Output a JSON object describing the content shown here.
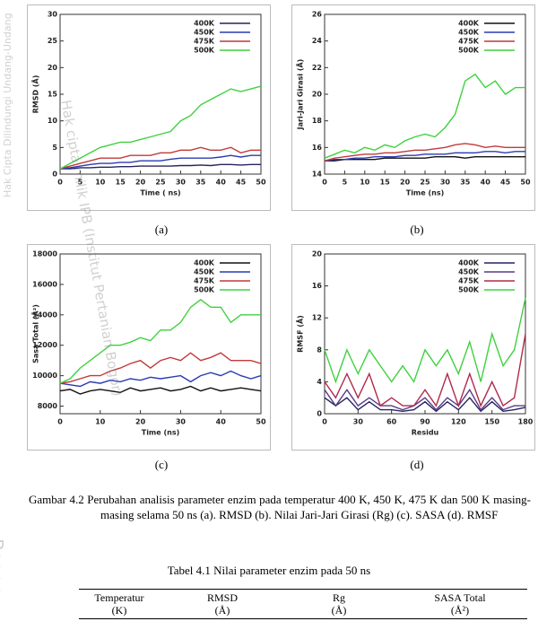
{
  "chart_data": [
    {
      "type": "line",
      "x_label": "Time ( ns)",
      "y_label": "RMSD (Å)",
      "x": [
        0,
        2.5,
        5,
        7.5,
        10,
        12.5,
        15,
        17.5,
        20,
        22.5,
        25,
        27.5,
        30,
        32.5,
        35,
        37.5,
        40,
        42.5,
        45,
        47.5,
        50
      ],
      "xlim": [
        0,
        50
      ],
      "xticks": [
        0,
        5,
        10,
        15,
        20,
        25,
        30,
        35,
        40,
        45,
        50
      ],
      "ylim": [
        0,
        30
      ],
      "yticks": [
        0,
        5,
        10,
        15,
        20,
        25,
        30
      ],
      "series": [
        {
          "name": "400K",
          "color": "#26245e",
          "values": [
            1,
            1,
            1.2,
            1.2,
            1.3,
            1.3,
            1.4,
            1.4,
            1.5,
            1.5,
            1.5,
            1.5,
            1.6,
            1.6,
            1.7,
            1.6,
            1.8,
            1.8,
            1.7,
            1.8,
            1.8
          ]
        },
        {
          "name": "450K",
          "color": "#2b3bb0",
          "values": [
            1,
            1.2,
            1.5,
            1.8,
            2,
            2,
            2.2,
            2.2,
            2.5,
            2.5,
            2.5,
            2.8,
            3,
            3,
            3,
            3,
            3.2,
            3.5,
            3.2,
            3.5,
            3.5
          ]
        },
        {
          "name": "475K",
          "color": "#c23a3a",
          "values": [
            1,
            1.5,
            2,
            2.5,
            3,
            3,
            3,
            3.5,
            3.5,
            3.5,
            4,
            4,
            4.5,
            4.5,
            5,
            4.5,
            4.5,
            5,
            4,
            4.5,
            4.5
          ]
        },
        {
          "name": "500K",
          "color": "#3fd13f",
          "values": [
            1,
            2,
            3,
            4,
            5,
            5.5,
            6,
            6,
            6.5,
            7,
            7.5,
            8,
            10,
            11,
            13,
            14,
            15,
            16,
            15.5,
            16,
            16.5
          ]
        }
      ]
    },
    {
      "type": "line",
      "x_label": "Time (ns)",
      "y_label": "Jari-Jari Girasi (Å)",
      "x": [
        0,
        2.5,
        5,
        7.5,
        10,
        12.5,
        15,
        17.5,
        20,
        22.5,
        25,
        27.5,
        30,
        32.5,
        35,
        37.5,
        40,
        42.5,
        45,
        47.5,
        50
      ],
      "xlim": [
        0,
        50
      ],
      "xticks": [
        0,
        5,
        10,
        15,
        20,
        25,
        30,
        35,
        40,
        45,
        50
      ],
      "ylim": [
        14,
        26
      ],
      "yticks": [
        14,
        16,
        18,
        20,
        22,
        24,
        26
      ],
      "series": [
        {
          "name": "400K",
          "color": "#111111",
          "values": [
            15,
            15,
            15.1,
            15.1,
            15.1,
            15.1,
            15.2,
            15.2,
            15.2,
            15.2,
            15.2,
            15.3,
            15.3,
            15.3,
            15.2,
            15.3,
            15.3,
            15.3,
            15.3,
            15.3,
            15.3
          ]
        },
        {
          "name": "450K",
          "color": "#2b3bb0",
          "values": [
            15,
            15.1,
            15.1,
            15.2,
            15.2,
            15.3,
            15.3,
            15.3,
            15.4,
            15.4,
            15.5,
            15.5,
            15.5,
            15.6,
            15.6,
            15.6,
            15.7,
            15.7,
            15.6,
            15.7,
            15.7
          ]
        },
        {
          "name": "475K",
          "color": "#c23a3a",
          "values": [
            15,
            15.2,
            15.3,
            15.4,
            15.5,
            15.5,
            15.6,
            15.6,
            15.7,
            15.8,
            15.8,
            15.9,
            16,
            16.2,
            16.3,
            16.2,
            16,
            16.1,
            16,
            16,
            16
          ]
        },
        {
          "name": "500K",
          "color": "#3fd13f",
          "values": [
            15.2,
            15.5,
            15.8,
            15.6,
            16,
            15.8,
            16.2,
            16,
            16.5,
            16.8,
            17,
            16.8,
            17.5,
            18.5,
            21,
            21.5,
            20.5,
            21,
            20,
            20.5,
            20.5
          ]
        }
      ]
    },
    {
      "type": "line",
      "x_label": "Time (ns)",
      "y_label": "Sasa Total (Å²)",
      "x": [
        0,
        2.5,
        5,
        7.5,
        10,
        12.5,
        15,
        17.5,
        20,
        22.5,
        25,
        27.5,
        30,
        32.5,
        35,
        37.5,
        40,
        42.5,
        45,
        47.5,
        50
      ],
      "xlim": [
        0,
        50
      ],
      "xticks": [
        0,
        10,
        20,
        30,
        40,
        50
      ],
      "ylim": [
        7500,
        18000
      ],
      "yticks": [
        8000,
        10000,
        12000,
        14000,
        16000,
        18000
      ],
      "series": [
        {
          "name": "400K",
          "color": "#111111",
          "values": [
            9000,
            9100,
            8800,
            9000,
            9100,
            9000,
            8900,
            9200,
            9000,
            9100,
            9200,
            9000,
            9100,
            9300,
            9000,
            9200,
            9000,
            9100,
            9200,
            9100,
            9000
          ]
        },
        {
          "name": "450K",
          "color": "#2b3bb0",
          "values": [
            9500,
            9400,
            9300,
            9600,
            9500,
            9700,
            9600,
            9800,
            9700,
            9900,
            9800,
            9900,
            10000,
            9600,
            10000,
            10200,
            10000,
            10300,
            10000,
            9800,
            10000
          ]
        },
        {
          "name": "475K",
          "color": "#c23a3a",
          "values": [
            9500,
            9600,
            9800,
            10000,
            10000,
            10300,
            10500,
            10800,
            11000,
            10500,
            11000,
            11200,
            11000,
            11500,
            11000,
            11200,
            11500,
            11000,
            11000,
            11000,
            10800
          ]
        },
        {
          "name": "500K",
          "color": "#3fd13f",
          "values": [
            9500,
            9800,
            10500,
            11000,
            11500,
            12000,
            12000,
            12200,
            12500,
            12300,
            13000,
            13000,
            13500,
            14500,
            15000,
            14500,
            14500,
            13500,
            14000,
            14000,
            14000
          ]
        }
      ]
    },
    {
      "type": "line",
      "x_label": "Residu",
      "y_label": "RMSF (Å)",
      "x": [
        0,
        10,
        20,
        30,
        40,
        50,
        60,
        70,
        80,
        90,
        100,
        110,
        120,
        130,
        140,
        150,
        160,
        170,
        180
      ],
      "xlim": [
        0,
        180
      ],
      "xticks": [
        0,
        30,
        60,
        90,
        120,
        150,
        180
      ],
      "ylim": [
        0,
        20
      ],
      "yticks": [
        0,
        4,
        8,
        12,
        16,
        20
      ],
      "series": [
        {
          "name": "400K",
          "color": "#26245e",
          "values": [
            2,
            1,
            2,
            0.5,
            1.5,
            0.5,
            0.5,
            0.3,
            0.5,
            1.5,
            0.3,
            1.5,
            0.5,
            2,
            0.3,
            1.5,
            0.3,
            0.5,
            0.8
          ]
        },
        {
          "name": "450K",
          "color": "#5a3a8a",
          "values": [
            3,
            1,
            3,
            1,
            2,
            1,
            1,
            0.5,
            1,
            2,
            0.5,
            2,
            1,
            3,
            0.5,
            2,
            0.5,
            1,
            1
          ]
        },
        {
          "name": "475K",
          "color": "#b02a4a",
          "values": [
            4,
            2,
            5,
            2,
            5,
            1,
            2,
            1,
            1,
            3,
            1,
            5,
            1,
            5,
            1,
            4,
            1,
            2,
            10
          ]
        },
        {
          "name": "500K",
          "color": "#3fd13f",
          "values": [
            8,
            4,
            8,
            5,
            8,
            6,
            4,
            6,
            4,
            8,
            6,
            8,
            5,
            9,
            4,
            10,
            6,
            8,
            14.5
          ]
        }
      ]
    }
  ],
  "document": {
    "panel_labels": [
      "(a)",
      "(b)",
      "(c)",
      "(d)"
    ],
    "figure_caption": "Gambar 4.2 Perubahan analisis parameter enzim pada temperatur 400 K, 450 K, 475 K dan 500 K masing-masing selama 50 ns (a). RMSD  (b). Nilai Jari-Jari Girasi (Rg) (c). SASA (d). RMSF",
    "table_caption": "Tabel 4.1 Nilai parameter enzim pada 50 ns",
    "table_header": [
      [
        "Temperatur",
        "(K)"
      ],
      [
        "RMSD",
        "(Å)"
      ],
      [
        "Rg",
        "(Å)"
      ],
      [
        "SASA Total",
        "(Å²)"
      ]
    ],
    "watermark": [
      "Hak Cipta Dilindungi Undang-Undang",
      "Hak cipta milik IPB (Institut Pertanian Bogor)",
      "Bogor"
    ]
  }
}
